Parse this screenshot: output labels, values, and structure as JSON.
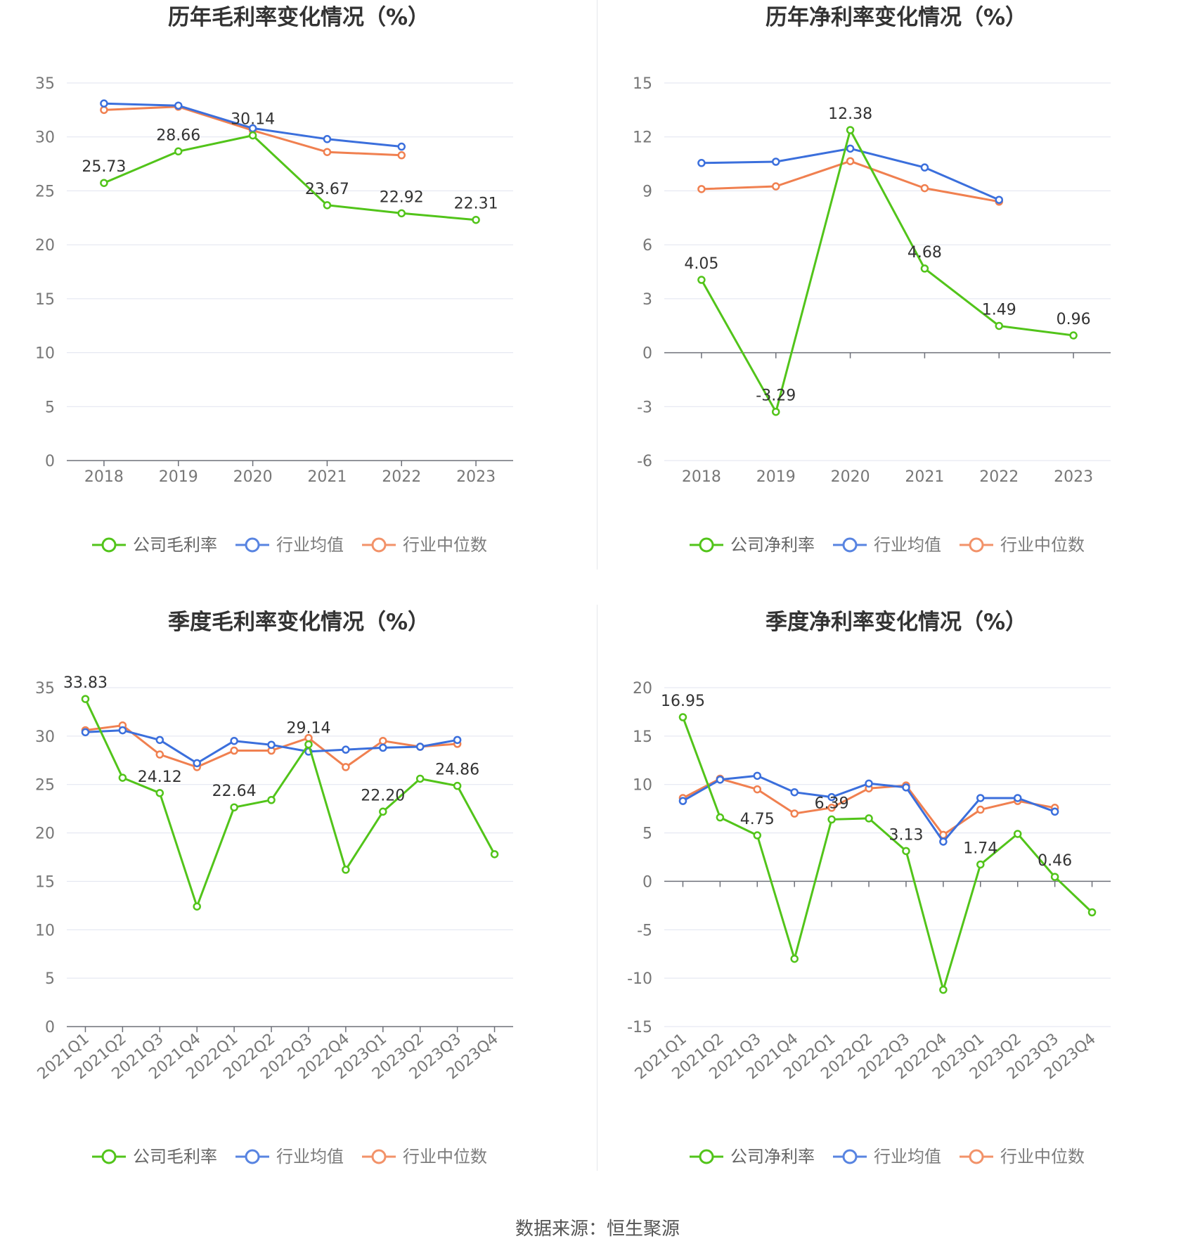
{
  "footer": {
    "source": "数据来源：恒生聚源"
  },
  "legend_fade": {
    "opacity_inactive": 0.85
  },
  "charts": [
    {
      "id": "annual-gross",
      "chart_data": {
        "type": "line",
        "title": "历年毛利率变化情况（%）",
        "categories": [
          "2018",
          "2019",
          "2020",
          "2021",
          "2022",
          "2023"
        ],
        "ylim": [
          0,
          35
        ],
        "yticks": [
          0,
          5,
          10,
          15,
          20,
          25,
          30,
          35
        ],
        "grid": true,
        "legend_position": "bottom",
        "label_series": 0,
        "series": [
          {
            "name": "公司毛利率",
            "color": "#52c41a",
            "values": [
              25.73,
              28.66,
              30.14,
              23.67,
              22.92,
              22.31
            ],
            "labels": [
              "25.73",
              "28.66",
              "30.14",
              "23.67",
              "22.92",
              "22.31"
            ]
          },
          {
            "name": "行业均值",
            "color": "#3b6fdc",
            "values": [
              33.1,
              32.9,
              30.8,
              29.8,
              29.1,
              null
            ]
          },
          {
            "name": "行业中位数",
            "color": "#f08050",
            "values": [
              32.5,
              32.8,
              30.6,
              28.6,
              28.3,
              null
            ]
          }
        ]
      }
    },
    {
      "id": "annual-net",
      "chart_data": {
        "type": "line",
        "title": "历年净利率变化情况（%）",
        "categories": [
          "2018",
          "2019",
          "2020",
          "2021",
          "2022",
          "2023"
        ],
        "ylim": [
          -6,
          15
        ],
        "yticks": [
          -6,
          -3,
          0,
          3,
          6,
          9,
          12,
          15
        ],
        "grid": true,
        "legend_position": "bottom",
        "label_series": 0,
        "series": [
          {
            "name": "公司净利率",
            "color": "#52c41a",
            "values": [
              4.05,
              -3.29,
              12.38,
              4.68,
              1.49,
              0.96
            ],
            "labels": [
              "4.05",
              "-3.29",
              "12.38",
              "4.68",
              "1.49",
              "0.96"
            ]
          },
          {
            "name": "行业均值",
            "color": "#3b6fdc",
            "values": [
              10.55,
              10.62,
              11.35,
              10.3,
              8.5,
              null
            ]
          },
          {
            "name": "行业中位数",
            "color": "#f08050",
            "values": [
              9.1,
              9.25,
              10.65,
              9.15,
              8.4,
              null
            ]
          }
        ]
      }
    },
    {
      "id": "quarter-gross",
      "chart_data": {
        "type": "line",
        "title": "季度毛利率变化情况（%）",
        "categories": [
          "2021Q1",
          "2021Q2",
          "2021Q3",
          "2021Q4",
          "2022Q1",
          "2022Q2",
          "2022Q3",
          "2022Q4",
          "2023Q1",
          "2023Q2",
          "2023Q3",
          "2023Q4"
        ],
        "ylim": [
          0,
          35
        ],
        "yticks": [
          0,
          5,
          10,
          15,
          20,
          25,
          30,
          35
        ],
        "grid": true,
        "legend_position": "bottom",
        "label_series": 0,
        "series": [
          {
            "name": "公司毛利率",
            "color": "#52c41a",
            "values": [
              33.83,
              25.7,
              24.12,
              12.4,
              22.64,
              23.4,
              29.14,
              16.2,
              22.2,
              25.6,
              24.86,
              17.8
            ],
            "labels": [
              "33.83",
              "",
              "24.12",
              "",
              "22.64",
              "",
              "29.14",
              "",
              "22.20",
              "",
              "24.86",
              ""
            ]
          },
          {
            "name": "行业均值",
            "color": "#3b6fdc",
            "values": [
              30.4,
              30.6,
              29.6,
              27.2,
              29.5,
              29.1,
              28.4,
              28.6,
              28.8,
              28.9,
              29.6,
              null
            ]
          },
          {
            "name": "行业中位数",
            "color": "#f08050",
            "values": [
              30.6,
              31.1,
              28.1,
              26.8,
              28.5,
              28.5,
              29.8,
              26.8,
              29.5,
              28.9,
              29.2,
              null
            ]
          }
        ]
      }
    },
    {
      "id": "quarter-net",
      "chart_data": {
        "type": "line",
        "title": "季度净利率变化情况（%）",
        "categories": [
          "2021Q1",
          "2021Q2",
          "2021Q3",
          "2021Q4",
          "2022Q1",
          "2022Q2",
          "2022Q3",
          "2022Q4",
          "2023Q1",
          "2023Q2",
          "2023Q3",
          "2023Q4"
        ],
        "ylim": [
          -15,
          20
        ],
        "yticks": [
          -15,
          -10,
          -5,
          0,
          5,
          10,
          15,
          20
        ],
        "grid": true,
        "legend_position": "bottom",
        "label_series": 0,
        "series": [
          {
            "name": "公司净利率",
            "color": "#52c41a",
            "values": [
              16.95,
              6.6,
              4.75,
              -8.0,
              6.39,
              6.5,
              3.13,
              -11.2,
              1.74,
              4.9,
              0.46,
              -3.2
            ],
            "labels": [
              "16.95",
              "",
              "4.75",
              "",
              "6.39",
              "",
              "3.13",
              "",
              "1.74",
              "",
              "0.46",
              ""
            ]
          },
          {
            "name": "行业均值",
            "color": "#3b6fdc",
            "values": [
              8.3,
              10.5,
              10.9,
              9.2,
              8.7,
              10.1,
              9.7,
              4.1,
              8.6,
              8.6,
              7.2,
              null
            ]
          },
          {
            "name": "行业中位数",
            "color": "#f08050",
            "values": [
              8.6,
              10.6,
              9.5,
              7.0,
              7.6,
              9.6,
              9.9,
              4.8,
              7.4,
              8.3,
              7.6,
              null
            ]
          }
        ]
      }
    }
  ]
}
